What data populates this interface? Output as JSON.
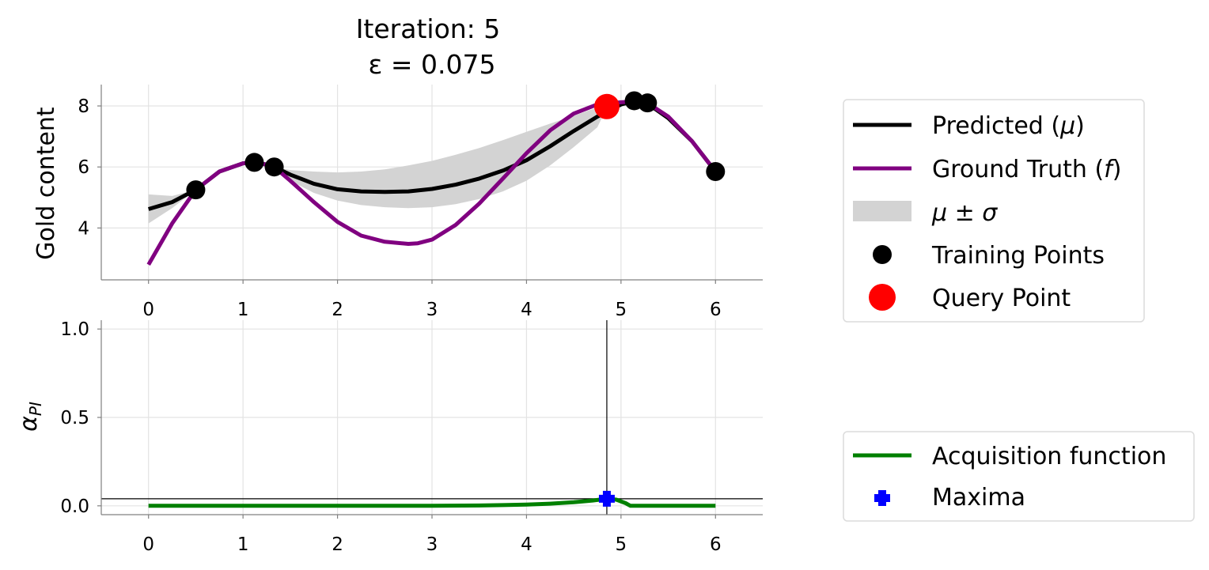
{
  "chart_data": [
    {
      "type": "line",
      "title_line1": "Iteration: 5",
      "title_line2": "ε = 0.075",
      "ylabel": "Gold content",
      "xlabel": "",
      "xlim": [
        -0.5,
        6.5
      ],
      "ylim": [
        2.3,
        8.7
      ],
      "xticks": [
        0,
        1,
        2,
        3,
        4,
        5,
        6
      ],
      "yticks": [
        4,
        6,
        8
      ],
      "grid": true,
      "legend_position": "right",
      "series": [
        {
          "name": "Predicted (μ)",
          "color": "#000000",
          "x": [
            0,
            0.25,
            0.5,
            0.75,
            1.0,
            1.1,
            1.25,
            1.33,
            1.5,
            1.75,
            2.0,
            2.25,
            2.5,
            2.75,
            3.0,
            3.25,
            3.5,
            3.75,
            4.0,
            4.25,
            4.5,
            4.75,
            5.0,
            5.14,
            5.28,
            5.5,
            5.75,
            6.0
          ],
          "y": [
            4.62,
            4.85,
            5.25,
            5.85,
            6.12,
            6.15,
            6.08,
            6.0,
            5.75,
            5.45,
            5.27,
            5.2,
            5.18,
            5.2,
            5.28,
            5.42,
            5.62,
            5.88,
            6.22,
            6.68,
            7.18,
            7.65,
            8.05,
            8.15,
            8.08,
            7.6,
            6.85,
            5.85
          ]
        },
        {
          "name": "Ground Truth (f)",
          "color": "#800080",
          "x": [
            0,
            0.25,
            0.5,
            0.75,
            1.0,
            1.1,
            1.25,
            1.33,
            1.5,
            1.75,
            2.0,
            2.25,
            2.5,
            2.75,
            2.85,
            3.0,
            3.25,
            3.5,
            3.75,
            4.0,
            4.25,
            4.5,
            4.75,
            5.0,
            5.14,
            5.28,
            5.5,
            5.75,
            6.0
          ],
          "y": [
            2.8,
            4.15,
            5.25,
            5.85,
            6.12,
            6.15,
            6.08,
            6.0,
            5.55,
            4.85,
            4.2,
            3.75,
            3.55,
            3.48,
            3.5,
            3.62,
            4.1,
            4.8,
            5.62,
            6.45,
            7.2,
            7.75,
            8.05,
            8.12,
            8.15,
            8.1,
            7.65,
            6.85,
            5.85
          ]
        }
      ],
      "band": {
        "name": "μ ± σ",
        "color": "#d3d3d3",
        "x": [
          0,
          0.25,
          0.5,
          0.75,
          1.0,
          1.1,
          1.25,
          1.33,
          1.5,
          1.75,
          2.0,
          2.25,
          2.5,
          2.75,
          3.0,
          3.25,
          3.5,
          3.75,
          4.0,
          4.25,
          4.5,
          4.75,
          4.85,
          5.0,
          5.14,
          5.28,
          5.5,
          5.75,
          6.0
        ],
        "lower": [
          4.15,
          4.65,
          5.25,
          5.8,
          6.08,
          6.15,
          6.05,
          6.0,
          5.55,
          5.15,
          4.9,
          4.75,
          4.68,
          4.65,
          4.68,
          4.78,
          4.95,
          5.2,
          5.55,
          6.05,
          6.65,
          7.3,
          7.95,
          8.1,
          8.15,
          8.08,
          7.6,
          6.85,
          5.85
        ],
        "upper": [
          5.1,
          5.05,
          5.25,
          5.9,
          6.16,
          6.15,
          6.1,
          6.0,
          5.9,
          5.85,
          5.82,
          5.85,
          5.92,
          6.05,
          6.2,
          6.4,
          6.62,
          6.88,
          7.15,
          7.42,
          7.68,
          7.95,
          8.0,
          8.12,
          8.15,
          8.08,
          7.6,
          6.85,
          5.85
        ]
      },
      "training_points": {
        "name": "Training Points",
        "color": "#000000",
        "x": [
          0.5,
          1.12,
          1.33,
          5.14,
          5.28,
          6.0
        ],
        "y": [
          5.25,
          6.15,
          6.0,
          8.17,
          8.1,
          5.85
        ]
      },
      "query_point": {
        "name": "Query Point",
        "color": "#ff0000",
        "x": [
          4.85
        ],
        "y": [
          7.98
        ]
      }
    },
    {
      "type": "line",
      "title": "",
      "ylabel": "α_PI",
      "ylabel_main": "α",
      "ylabel_sub": "PI",
      "xlabel": "",
      "xlim": [
        -0.5,
        6.5
      ],
      "ylim": [
        -0.05,
        1.05
      ],
      "xticks": [
        0,
        1,
        2,
        3,
        4,
        5,
        6
      ],
      "yticks": [
        0.0,
        0.5,
        1.0
      ],
      "ytick_labels": [
        "0.0",
        "0.5",
        "1.0"
      ],
      "grid": true,
      "legend_position": "right",
      "vline_x": 4.85,
      "hline_y": 0.04,
      "series": [
        {
          "name": "Acquisition function",
          "color": "#008000",
          "x": [
            0,
            0.5,
            1.0,
            1.5,
            2.0,
            2.5,
            3.0,
            3.5,
            3.75,
            4.0,
            4.25,
            4.5,
            4.7,
            4.85,
            4.95,
            5.05,
            5.1,
            5.3,
            5.5,
            6.0
          ],
          "y": [
            0,
            0,
            0,
            0,
            0,
            0,
            0,
            0.002,
            0.004,
            0.007,
            0.012,
            0.02,
            0.03,
            0.04,
            0.035,
            0.015,
            0.0,
            0.0,
            0.0,
            0.0
          ]
        }
      ],
      "maxima": {
        "name": "Maxima",
        "color": "#0000ff",
        "x": [
          4.85
        ],
        "y": [
          0.04
        ]
      }
    }
  ],
  "legend_top": [
    "Predicted (",
    "Ground Truth (",
    "μ ± σ",
    "Training Points",
    "Query Point"
  ],
  "legend_top_symbols": [
    "μ",
    "f"
  ],
  "legend_bottom": [
    "Acquisition function",
    "Maxima"
  ]
}
